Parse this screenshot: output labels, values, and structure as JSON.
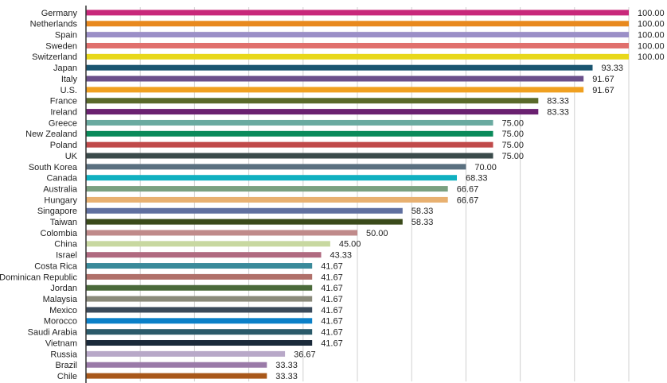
{
  "chart_data": {
    "type": "hbar",
    "categories": [
      "Germany",
      "Netherlands",
      "Spain",
      "Sweden",
      "Switzerland",
      "Japan",
      "Italy",
      "U.S.",
      "France",
      "Ireland",
      "Greece",
      "New Zealand",
      "Poland",
      "UK",
      "South Korea",
      "Canada",
      "Australia",
      "Hungary",
      "Singapore",
      "Taiwan",
      "Colombia",
      "China",
      "Israel",
      "Costa Rica",
      "Dominican Republic",
      "Jordan",
      "Malaysia",
      "Mexico",
      "Morocco",
      "Saudi Arabia",
      "Vietnam",
      "Russia",
      "Brazil",
      "Chile"
    ],
    "values": [
      100,
      100,
      100,
      100,
      100,
      93.33,
      91.67,
      91.67,
      83.33,
      83.33,
      75,
      75,
      75,
      75,
      70,
      68.33,
      66.67,
      66.67,
      58.33,
      58.33,
      50,
      45,
      43.33,
      41.67,
      41.67,
      41.67,
      41.67,
      41.67,
      41.67,
      41.67,
      41.67,
      36.67,
      33.33,
      33.33
    ],
    "value_labels": [
      "100.00",
      "100.00",
      "100.00",
      "100.00",
      "100.00",
      "93.33",
      "91.67",
      "91.67",
      "83.33",
      "83.33",
      "75.00",
      "75.00",
      "75.00",
      "75.00",
      "70.00",
      "68.33",
      "66.67",
      "66.67",
      "58.33",
      "58.33",
      "50.00",
      "45.00",
      "43.33",
      "41.67",
      "41.67",
      "41.67",
      "41.67",
      "41.67",
      "41.67",
      "41.67",
      "41.67",
      "36.67",
      "33.33",
      "33.33"
    ],
    "colors": [
      "#c8287a",
      "#e8891e",
      "#9b8fc7",
      "#e0706d",
      "#e8d81a",
      "#1a5570",
      "#6a4f8a",
      "#f0a020",
      "#5a6a2a",
      "#6a2070",
      "#6aaaa0",
      "#0a8a5a",
      "#c04a4a",
      "#3a4a4a",
      "#5a7080",
      "#10b0c0",
      "#7aa080",
      "#e8b070",
      "#6070a0",
      "#3a4a1a",
      "#c08a8a",
      "#c8d8a0",
      "#b06a80",
      "#3a8a9a",
      "#b0706a",
      "#4a6a3a",
      "#8a8a7a",
      "#3a4a5a",
      "#0a80c8",
      "#2a5a6a",
      "#1a2a3a",
      "#b8a8c8",
      "#9a7aa8",
      "#a8581a"
    ],
    "xlim": [
      0,
      100
    ],
    "xticks": [
      10,
      20,
      30,
      40,
      50,
      60,
      70,
      80,
      90,
      100
    ],
    "grid": true
  }
}
